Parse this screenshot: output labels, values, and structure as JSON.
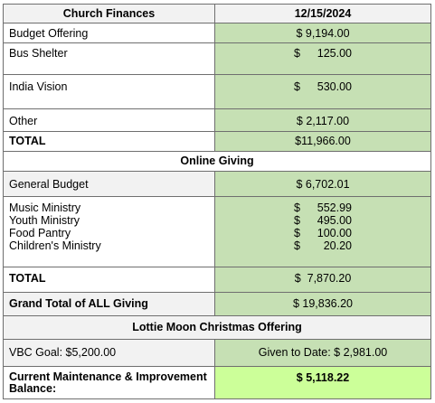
{
  "header": {
    "title": "Church Finances",
    "date": "12/15/2024"
  },
  "finances": [
    {
      "label": "Budget Offering",
      "value": "$ 9,194.00"
    },
    {
      "label": "Bus Shelter",
      "dollar": "$",
      "value": "125.00"
    },
    {
      "label": "India Vision",
      "dollar": "$",
      "value": "530.00"
    },
    {
      "label": "Other",
      "value": "$ 2,117.00"
    },
    {
      "label": "TOTAL",
      "value": "$11,966.00"
    }
  ],
  "online_giving": {
    "title": "Online Giving",
    "general_budget": {
      "label": "General Budget",
      "value": "$ 6,702.01"
    },
    "ministries": [
      {
        "label": "Music Ministry",
        "dollar": "$",
        "value": "552.99"
      },
      {
        "label": "Youth Ministry",
        "dollar": "$",
        "value": "495.00"
      },
      {
        "label": "Food Pantry",
        "dollar": "$",
        "value": "100.00"
      },
      {
        "label": "Children's Ministry",
        "dollar": "$",
        "value": "20.20"
      }
    ],
    "total": {
      "label": "TOTAL",
      "value": "$  7,870.20"
    }
  },
  "grand_total": {
    "label": "Grand Total of ALL Giving",
    "value": "$ 19,836.20"
  },
  "lottie_moon": {
    "title": "Lottie Moon Christmas Offering",
    "goal": "VBC Goal: $5,200.00",
    "given": "Given to Date: $ 2,981.00"
  },
  "balance": {
    "label": "Current Maintenance & Improvement Balance:",
    "value": "$ 5,118.22"
  }
}
